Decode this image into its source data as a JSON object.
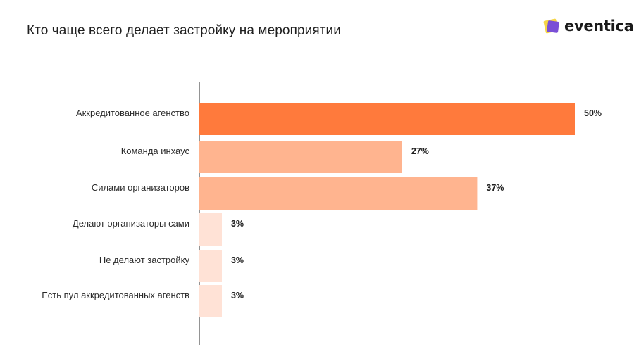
{
  "header": {
    "title": "Кто чаще всего делает застройку на мероприятии",
    "logo_text": "eventica"
  },
  "colors": {
    "primary_bar": "#ff7a3c",
    "secondary_bar": "#ffb48f",
    "tertiary_bar": "#ffe2d6",
    "logo_purple": "#7a4fd6",
    "logo_yellow": "#f5d547"
  },
  "chart_data": {
    "type": "bar",
    "orientation": "horizontal",
    "categories": [
      "Аккредитованное агенство",
      "Команда инхаус",
      "Силами организаторов",
      "Делают организаторы сами",
      "Не делают застройку",
      "Есть пул аккредитованных агенств"
    ],
    "values": [
      50,
      27,
      37,
      3,
      3,
      3
    ],
    "value_labels": [
      "50%",
      "27%",
      "37%",
      "3%",
      "3%",
      "3%"
    ],
    "bar_colors": [
      "#ff7a3c",
      "#ffb48f",
      "#ffb48f",
      "#ffe2d6",
      "#ffe2d6",
      "#ffe2d6"
    ],
    "xlim": [
      0,
      50
    ],
    "unit": "%",
    "grid": false,
    "legend": "none"
  }
}
